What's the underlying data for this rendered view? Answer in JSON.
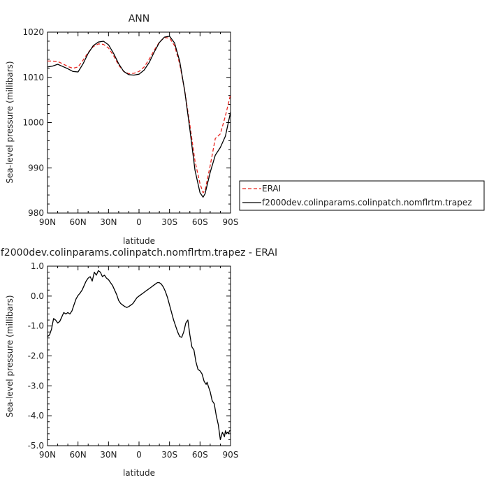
{
  "chart_data": [
    {
      "type": "line",
      "title": "ANN",
      "xlabel": "latitude",
      "ylabel": "Sea-level pressure (millibars)",
      "xlim": [
        90,
        -90
      ],
      "ylim": [
        980,
        1020
      ],
      "x_ticks": [
        90,
        60,
        30,
        0,
        -30,
        -60,
        -90
      ],
      "x_tick_labels": [
        "90N",
        "60N",
        "30N",
        "0",
        "30S",
        "60S",
        "90S"
      ],
      "y_ticks": [
        980,
        990,
        1000,
        1010,
        1020
      ],
      "y_tick_labels": [
        "980",
        "990",
        "1000",
        "1010",
        "1020"
      ],
      "legend_position": "right",
      "series": [
        {
          "name": "ERAI",
          "color": "#e8251f",
          "dash": "dashed",
          "x": [
            90,
            85,
            80,
            75,
            70,
            65,
            60,
            55,
            50,
            45,
            40,
            35,
            30,
            25,
            20,
            15,
            10,
            5,
            0,
            -5,
            -10,
            -15,
            -20,
            -25,
            -30,
            -35,
            -40,
            -45,
            -50,
            -55,
            -60,
            -63,
            -65,
            -70,
            -75,
            -80,
            -85,
            -90
          ],
          "y": [
            1013.6,
            1013.6,
            1013.5,
            1013.0,
            1012.4,
            1012.0,
            1012.3,
            1013.8,
            1015.5,
            1016.8,
            1017.4,
            1017.3,
            1016.5,
            1014.8,
            1012.7,
            1011.3,
            1010.8,
            1010.9,
            1011.3,
            1012.3,
            1014.0,
            1016.0,
            1017.8,
            1018.8,
            1018.7,
            1017.0,
            1013.0,
            1007.0,
            999.5,
            991.5,
            986.5,
            984.5,
            985.0,
            990.5,
            996.5,
            997.5,
            1001.5,
            1006.2
          ]
        },
        {
          "name": "f2000dev.colinparams.colinpatch.nomflrtm.trapez",
          "color": "#000000",
          "dash": "solid",
          "x": [
            90,
            85,
            80,
            75,
            70,
            65,
            60,
            55,
            50,
            45,
            40,
            35,
            30,
            25,
            20,
            15,
            10,
            5,
            0,
            -5,
            -10,
            -15,
            -20,
            -25,
            -30,
            -35,
            -40,
            -45,
            -50,
            -55,
            -60,
            -63,
            -65,
            -70,
            -75,
            -80,
            -85,
            -90
          ],
          "y": [
            1012.3,
            1012.5,
            1012.9,
            1012.4,
            1011.9,
            1011.3,
            1011.2,
            1013.0,
            1015.3,
            1017.0,
            1017.8,
            1018.0,
            1017.2,
            1015.3,
            1013.0,
            1011.3,
            1010.6,
            1010.5,
            1010.7,
            1011.6,
            1013.3,
            1015.6,
            1017.7,
            1018.9,
            1019.1,
            1017.6,
            1013.6,
            1006.9,
            998.5,
            989.5,
            984.5,
            983.5,
            984.3,
            989.0,
            992.8,
            994.5,
            997.0,
            1002.3
          ]
        }
      ]
    },
    {
      "type": "line",
      "title": "f2000dev.colinparams.colinpatch.nomflrtm.trapez - ERAI",
      "xlabel": "latitude",
      "ylabel": "Sea-level pressure (millibars)",
      "xlim": [
        90,
        -90
      ],
      "ylim": [
        -5.0,
        1.0
      ],
      "x_ticks": [
        90,
        60,
        30,
        0,
        -30,
        -60,
        -90
      ],
      "x_tick_labels": [
        "90N",
        "60N",
        "30N",
        "0",
        "30S",
        "60S",
        "90S"
      ],
      "y_ticks": [
        -5,
        -4,
        -3,
        -2,
        -1,
        0,
        1
      ],
      "y_tick_labels": [
        "-5.0",
        "-4.0",
        "-3.0",
        "-2.0",
        "-1.0",
        "0.0",
        "1.0"
      ],
      "series": [
        {
          "name": "",
          "color": "#000000",
          "dash": "solid",
          "x": [
            90,
            88,
            86,
            84,
            82,
            80,
            78,
            76,
            74,
            72,
            70,
            68,
            66,
            64,
            62,
            60,
            58,
            56,
            54,
            52,
            50,
            48,
            46,
            44,
            42,
            40,
            38,
            36,
            34,
            32,
            30,
            28,
            26,
            24,
            22,
            20,
            18,
            16,
            14,
            12,
            10,
            8,
            6,
            4,
            2,
            0,
            -2,
            -4,
            -6,
            -8,
            -10,
            -12,
            -14,
            -16,
            -18,
            -20,
            -22,
            -24,
            -26,
            -28,
            -30,
            -32,
            -34,
            -36,
            -38,
            -40,
            -42,
            -44,
            -46,
            -48,
            -50,
            -52,
            -54,
            -56,
            -58,
            -60,
            -62,
            -64,
            -65,
            -66,
            -67,
            -68,
            -70,
            -72,
            -74,
            -76,
            -78,
            -80,
            -82,
            -84,
            -85,
            -86,
            -87,
            -88,
            -89,
            -90
          ],
          "y": [
            -1.35,
            -1.3,
            -1.1,
            -0.75,
            -0.8,
            -0.9,
            -0.85,
            -0.7,
            -0.55,
            -0.6,
            -0.55,
            -0.6,
            -0.5,
            -0.3,
            -0.1,
            0.02,
            0.1,
            0.2,
            0.35,
            0.5,
            0.6,
            0.65,
            0.5,
            0.8,
            0.7,
            0.85,
            0.8,
            0.65,
            0.7,
            0.6,
            0.55,
            0.45,
            0.35,
            0.2,
            0.05,
            -0.15,
            -0.25,
            -0.3,
            -0.35,
            -0.38,
            -0.35,
            -0.3,
            -0.25,
            -0.15,
            -0.05,
            0.0,
            0.05,
            0.1,
            0.15,
            0.2,
            0.25,
            0.3,
            0.35,
            0.4,
            0.45,
            0.45,
            0.4,
            0.3,
            0.15,
            -0.05,
            -0.3,
            -0.55,
            -0.8,
            -1.0,
            -1.2,
            -1.35,
            -1.38,
            -1.2,
            -0.9,
            -0.8,
            -1.3,
            -1.7,
            -1.8,
            -2.2,
            -2.45,
            -2.5,
            -2.6,
            -2.85,
            -2.9,
            -2.95,
            -2.88,
            -3.0,
            -3.2,
            -3.5,
            -3.6,
            -4.0,
            -4.3,
            -4.8,
            -4.55,
            -4.7,
            -4.5,
            -4.6,
            -4.55,
            -4.6,
            -4.5,
            -4.5
          ]
        }
      ]
    }
  ]
}
